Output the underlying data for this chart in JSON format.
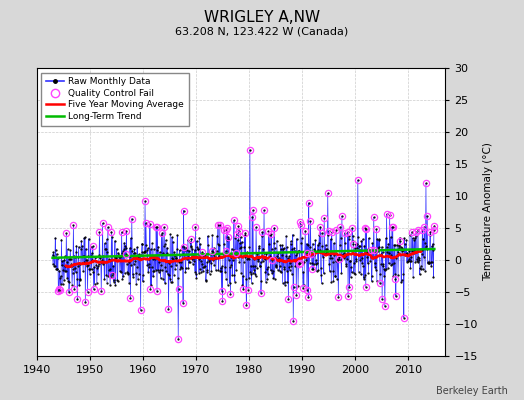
{
  "title": "WRIGLEY A,NW",
  "subtitle": "63.208 N, 123.422 W (Canada)",
  "ylabel": "Temperature Anomaly (°C)",
  "watermark": "Berkeley Earth",
  "xlim": [
    1940,
    2017
  ],
  "ylim": [
    -15,
    30
  ],
  "yticks": [
    -15,
    -10,
    -5,
    0,
    5,
    10,
    15,
    20,
    25,
    30
  ],
  "xticks": [
    1940,
    1950,
    1960,
    1970,
    1980,
    1990,
    2000,
    2010
  ],
  "bg_color": "#d8d8d8",
  "plot_bg_color": "#ffffff",
  "seed": 42,
  "year_start": 1943,
  "year_end": 2015,
  "raw_color": "#3333ff",
  "qc_color": "#ff44ff",
  "ma_color": "#ff0000",
  "trend_color": "#00bb00",
  "raw_linewidth": 0.5,
  "ma_linewidth": 1.8,
  "trend_linewidth": 1.8,
  "title_fontsize": 11,
  "subtitle_fontsize": 8,
  "tick_fontsize": 8,
  "ylabel_fontsize": 7.5
}
